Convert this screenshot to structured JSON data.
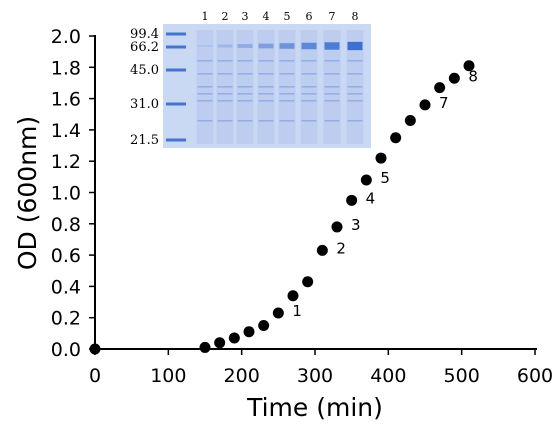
{
  "chart_data": {
    "type": "scatter",
    "xlabel": "Time (min)",
    "ylabel": "OD (600nm)",
    "xlim": [
      0,
      600
    ],
    "ylim": [
      0,
      2.0
    ],
    "x_ticks": [
      "0",
      "100",
      "200",
      "300",
      "400",
      "500",
      "600"
    ],
    "y_ticks": [
      "0.0",
      "0.2",
      "0.4",
      "0.6",
      "0.8",
      "1.0",
      "1.2",
      "1.4",
      "1.6",
      "1.8",
      "2.0"
    ],
    "grid": false,
    "series": [
      {
        "color": "#000000",
        "x": [
          0,
          150,
          170,
          190,
          210,
          230,
          250,
          270,
          290,
          310,
          330,
          350,
          370,
          390,
          410,
          430,
          450,
          470,
          490,
          510
        ],
        "y": [
          0.0,
          0.01,
          0.04,
          0.07,
          0.11,
          0.15,
          0.23,
          0.34,
          0.43,
          0.63,
          0.78,
          0.95,
          1.08,
          1.22,
          1.35,
          1.46,
          1.56,
          1.67,
          1.73,
          1.81
        ]
      }
    ],
    "annotations": [
      {
        "text": "1",
        "x": 250,
        "y": 0.23
      },
      {
        "text": "2",
        "x": 310,
        "y": 0.63
      },
      {
        "text": "3",
        "x": 330,
        "y": 0.78
      },
      {
        "text": "4",
        "x": 350,
        "y": 0.95
      },
      {
        "text": "5",
        "x": 370,
        "y": 1.08
      },
      {
        "text": "7",
        "x": 450,
        "y": 1.56
      },
      {
        "text": "8",
        "x": 490,
        "y": 1.73
      }
    ],
    "inset_gel": {
      "lane_labels": [
        "1",
        "2",
        "3",
        "4",
        "5",
        "6",
        "7",
        "8"
      ],
      "marker_labels": [
        "99.4",
        "66.2",
        "45.0",
        "31.0",
        "21.5"
      ],
      "band_color": "#3d6fd0",
      "background_color": "#c9d8f3"
    }
  }
}
